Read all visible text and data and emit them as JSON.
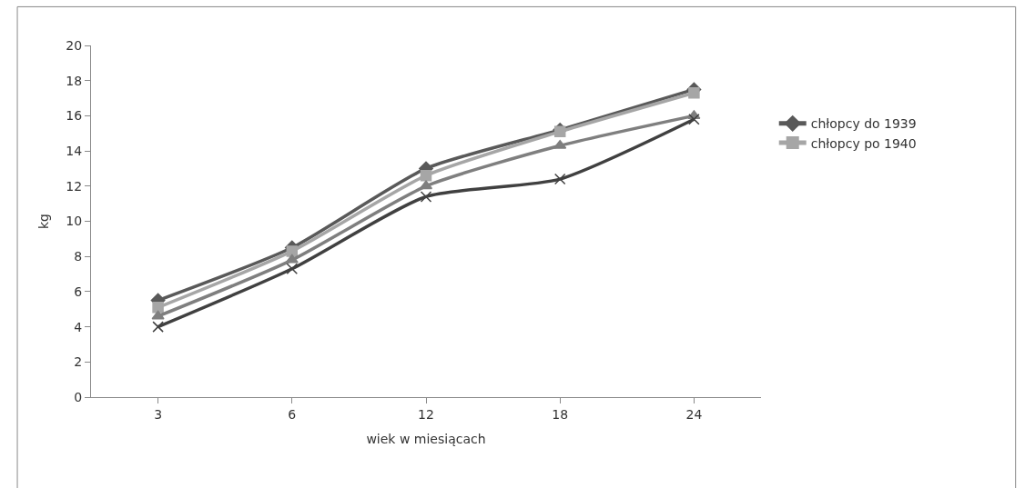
{
  "chart_data": {
    "type": "line",
    "xlabel": "wiek w miesiącach",
    "ylabel": "kg",
    "categories": [
      "3",
      "6",
      "12",
      "18",
      "24"
    ],
    "series": [
      {
        "name": "chłopcy do 1939",
        "color": "#595959",
        "marker": "diamond",
        "values": [
          5.5,
          8.5,
          13.0,
          15.2,
          17.5
        ]
      },
      {
        "name": "chłopcy po 1940",
        "color": "#a6a6a6",
        "marker": "square",
        "values": [
          5.1,
          8.3,
          12.6,
          15.1,
          17.3
        ]
      },
      {
        "color": "#7f7f7f",
        "marker": "triangle",
        "values": [
          4.6,
          7.8,
          12.0,
          14.3,
          16.0
        ]
      },
      {
        "color": "#404040",
        "marker": "cross",
        "values": [
          4.0,
          7.3,
          11.4,
          12.4,
          15.8
        ]
      }
    ],
    "ylim": [
      0,
      20
    ],
    "yticks": [
      0,
      2,
      4,
      6,
      8,
      10,
      12,
      14,
      16,
      18,
      20
    ],
    "legend": "right"
  }
}
